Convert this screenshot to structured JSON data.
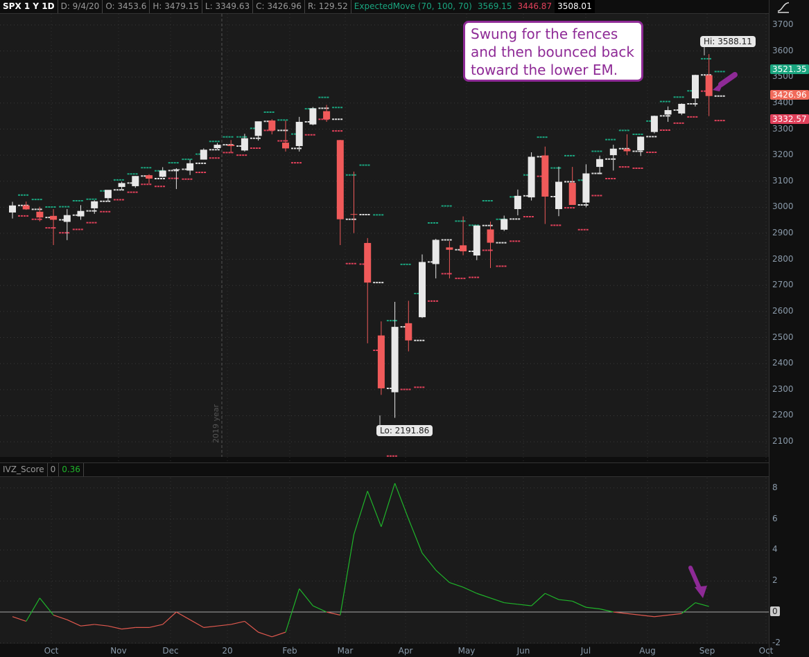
{
  "header": {
    "symbol": "SPX 1 Y 1D",
    "date": "D: 9/4/20",
    "open": "O: 3453.6",
    "high": "H: 3479.15",
    "low": "L: 3349.63",
    "close": "C: 3426.96",
    "range": "R: 129.52",
    "study": "ExpectedMove (70, 100, 70)",
    "em_upper": "3569.15",
    "em_lower": "3446.87",
    "em_mid": "3508.01"
  },
  "sub_header": {
    "study": "IVZ_Score",
    "param": "0",
    "value": "0.36"
  },
  "annotation": "Swung for the fences and then bounced back toward the lower EM.",
  "hi_label": "Hi: 3588.11",
  "lo_label": "Lo: 2191.86",
  "year_marker": "2019 year",
  "badges": {
    "upper": "3521.35",
    "close": "3426.96",
    "lower": "3332.57",
    "ivz_zero": "0"
  },
  "colors": {
    "up": "#e8e8e8",
    "down": "#f05a5a",
    "em_upper": "#1aa57f",
    "em_lower": "#e0405a",
    "ivz_pos": "#1fb52a",
    "ivz_neg": "#e0584e",
    "arrow": "#8e2a96"
  },
  "chart_data": [
    {
      "type": "candlestick",
      "title": "SPX 1 Y 1D",
      "ylim": [
        2050,
        3760
      ],
      "yticks": [
        2100,
        2200,
        2300,
        2400,
        2500,
        2600,
        2700,
        2800,
        2900,
        3000,
        3100,
        3200,
        3300,
        3400,
        3500,
        3600,
        3700
      ],
      "xticks": [
        "Oct",
        "Nov",
        "Dec",
        "20",
        "Feb",
        "Mar",
        "Apr",
        "May",
        "Jun",
        "Jul",
        "Aug",
        "Sep",
        "Oct"
      ],
      "candles": [
        [
          2980,
          3021,
          2957,
          3007,
          40
        ],
        [
          3007,
          3022,
          2990,
          2992,
          38
        ],
        [
          2983,
          3002,
          2946,
          2961,
          40
        ],
        [
          2967,
          2993,
          2855,
          2952,
          50
        ],
        [
          2944,
          2993,
          2874,
          2970,
          55
        ],
        [
          2965,
          3008,
          2952,
          2986,
          45
        ],
        [
          2996,
          3027,
          2975,
          3023,
          40
        ],
        [
          3035,
          3066,
          3023,
          3067,
          38
        ],
        [
          3078,
          3098,
          3066,
          3093,
          35
        ],
        [
          3081,
          3120,
          3075,
          3120,
          32
        ],
        [
          3123,
          3127,
          3091,
          3110,
          30
        ],
        [
          3117,
          3154,
          3115,
          3141,
          30
        ],
        [
          3143,
          3150,
          3070,
          3146,
          38
        ],
        [
          3141,
          3183,
          3124,
          3169,
          35
        ],
        [
          3183,
          3226,
          3183,
          3221,
          32
        ],
        [
          3227,
          3247,
          3223,
          3240,
          30
        ],
        [
          3240,
          3258,
          3210,
          3235,
          35
        ],
        [
          3218,
          3282,
          3214,
          3265,
          38
        ],
        [
          3274,
          3329,
          3256,
          3330,
          35
        ],
        [
          3333,
          3338,
          3280,
          3295,
          40
        ],
        [
          3248,
          3333,
          3214,
          3226,
          55
        ],
        [
          3235,
          3347,
          3214,
          3328,
          50
        ],
        [
          3318,
          3385,
          3315,
          3380,
          42
        ],
        [
          3369,
          3393,
          3328,
          3338,
          45
        ],
        [
          3258,
          3259,
          2855,
          2954,
          170
        ],
        [
          2974,
          3137,
          2901,
          2972,
          190
        ],
        [
          2863,
          2882,
          2478,
          2711,
          260
        ],
        [
          2508,
          2562,
          2280,
          2305,
          260
        ],
        [
          2290,
          2637,
          2192,
          2541,
          240
        ],
        [
          2555,
          2641,
          2447,
          2489,
          180
        ],
        [
          2578,
          2819,
          2575,
          2790,
          150
        ],
        [
          2782,
          2879,
          2727,
          2875,
          130
        ],
        [
          2846,
          2870,
          2727,
          2837,
          110
        ],
        [
          2854,
          2965,
          2816,
          2831,
          100
        ],
        [
          2815,
          2930,
          2797,
          2930,
          95
        ],
        [
          2915,
          2945,
          2767,
          2864,
          90
        ],
        [
          2914,
          2968,
          2909,
          2955,
          85
        ],
        [
          2993,
          3068,
          2969,
          3044,
          80
        ],
        [
          3038,
          3211,
          3026,
          3194,
          75
        ],
        [
          3199,
          3233,
          2936,
          3041,
          110
        ],
        [
          2993,
          3156,
          2966,
          3098,
          100
        ],
        [
          3094,
          3155,
          3010,
          3009,
          95
        ],
        [
          3018,
          3165,
          3000,
          3130,
          85
        ],
        [
          3155,
          3198,
          3127,
          3185,
          75
        ],
        [
          3200,
          3240,
          3141,
          3225,
          70
        ],
        [
          3224,
          3280,
          3200,
          3215,
          65
        ],
        [
          3219,
          3272,
          3197,
          3271,
          60
        ],
        [
          3289,
          3352,
          3284,
          3351,
          55
        ],
        [
          3356,
          3387,
          3328,
          3373,
          50
        ],
        [
          3360,
          3399,
          3354,
          3397,
          50
        ],
        [
          3418,
          3509,
          3387,
          3508,
          62
        ],
        [
          3507,
          3588,
          3350,
          3427,
          94
        ]
      ]
    },
    {
      "type": "line",
      "title": "IVZ_Score",
      "ylim": [
        -2,
        8.6
      ],
      "yticks": [
        8,
        6,
        4,
        2,
        0,
        -2
      ],
      "values": [
        -0.3,
        -0.6,
        0.9,
        -0.2,
        -0.5,
        -0.9,
        -0.8,
        -0.9,
        -1.1,
        -1.0,
        -1.0,
        -0.8,
        0.0,
        -0.5,
        -1.0,
        -0.9,
        -0.8,
        -0.6,
        -1.3,
        -1.6,
        -1.3,
        1.5,
        0.4,
        0.0,
        -0.2,
        5.0,
        7.8,
        5.5,
        8.3,
        6.0,
        3.8,
        2.7,
        1.9,
        1.6,
        1.2,
        0.9,
        0.6,
        0.5,
        0.4,
        1.2,
        0.8,
        0.7,
        0.3,
        0.2,
        0.0,
        -0.1,
        -0.2,
        -0.3,
        -0.2,
        -0.1,
        0.6,
        0.36
      ]
    }
  ]
}
